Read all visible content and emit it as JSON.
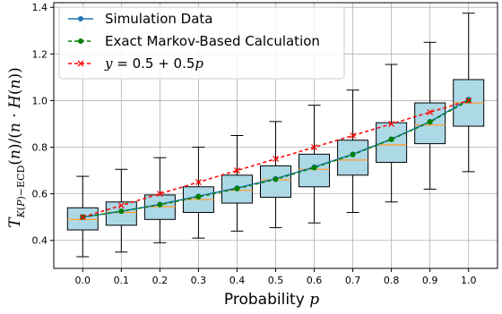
{
  "chart_data": {
    "type": "box",
    "title": "",
    "xlabel": "Probability p",
    "ylabel": "T_{K(P)-ECD}(n)/(n·H(n))",
    "xlim": [
      -0.075,
      1.075
    ],
    "ylim": [
      0.28,
      1.42
    ],
    "x_ticks": [
      "0.0",
      "0.1",
      "0.2",
      "0.3",
      "0.4",
      "0.5",
      "0.6",
      "0.7",
      "0.8",
      "0.9",
      "1.0"
    ],
    "y_ticks": [
      "0.4",
      "0.6",
      "0.8",
      "1.0",
      "1.2",
      "1.4"
    ],
    "grid": true,
    "legend_position": "top-left",
    "boxes": [
      {
        "x": 0.0,
        "whisker_low": 0.33,
        "q1": 0.445,
        "median": 0.49,
        "q3": 0.54,
        "whisker_high": 0.675
      },
      {
        "x": 0.1,
        "whisker_low": 0.35,
        "q1": 0.465,
        "median": 0.52,
        "q3": 0.565,
        "whisker_high": 0.705
      },
      {
        "x": 0.2,
        "whisker_low": 0.39,
        "q1": 0.49,
        "median": 0.545,
        "q3": 0.595,
        "whisker_high": 0.755
      },
      {
        "x": 0.3,
        "whisker_low": 0.41,
        "q1": 0.52,
        "median": 0.575,
        "q3": 0.63,
        "whisker_high": 0.8
      },
      {
        "x": 0.4,
        "whisker_low": 0.44,
        "q1": 0.56,
        "median": 0.615,
        "q3": 0.68,
        "whisker_high": 0.85
      },
      {
        "x": 0.5,
        "whisker_low": 0.455,
        "q1": 0.585,
        "median": 0.66,
        "q3": 0.72,
        "whisker_high": 0.91
      },
      {
        "x": 0.6,
        "whisker_low": 0.475,
        "q1": 0.63,
        "median": 0.705,
        "q3": 0.77,
        "whisker_high": 0.98
      },
      {
        "x": 0.7,
        "whisker_low": 0.52,
        "q1": 0.68,
        "median": 0.745,
        "q3": 0.83,
        "whisker_high": 1.045
      },
      {
        "x": 0.8,
        "whisker_low": 0.565,
        "q1": 0.735,
        "median": 0.81,
        "q3": 0.905,
        "whisker_high": 1.155
      },
      {
        "x": 0.9,
        "whisker_low": 0.62,
        "q1": 0.815,
        "median": 0.895,
        "q3": 0.99,
        "whisker_high": 1.25
      },
      {
        "x": 1.0,
        "whisker_low": 0.695,
        "q1": 0.89,
        "median": 0.99,
        "q3": 1.09,
        "whisker_high": 1.375
      }
    ],
    "series": [
      {
        "name": "Simulation Data",
        "style": "solid-line-circle",
        "color": "#1f77b4",
        "x": [
          0.0,
          0.1,
          0.2,
          0.3,
          0.4,
          0.5,
          0.6,
          0.7,
          0.8,
          0.9,
          1.0
        ],
        "y": [
          0.5,
          0.525,
          0.555,
          0.59,
          0.625,
          0.665,
          0.715,
          0.77,
          0.835,
          0.91,
          1.005
        ]
      },
      {
        "name": "Exact Markov-Based Calculation",
        "style": "dashed-line-circle",
        "color": "#008000",
        "x": [
          0.0,
          0.1,
          0.2,
          0.3,
          0.4,
          0.5,
          0.6,
          0.7,
          0.8,
          0.9,
          1.0
        ],
        "y": [
          0.5,
          0.525,
          0.553,
          0.587,
          0.622,
          0.662,
          0.712,
          0.768,
          0.833,
          0.908,
          1.0
        ]
      },
      {
        "name": "y = 0.5 + 0.5p",
        "style": "dashed-line-x",
        "color": "#ff0000",
        "x": [
          0.0,
          0.1,
          0.2,
          0.3,
          0.4,
          0.5,
          0.6,
          0.7,
          0.8,
          0.9,
          1.0
        ],
        "y": [
          0.5,
          0.55,
          0.6,
          0.65,
          0.7,
          0.75,
          0.8,
          0.85,
          0.9,
          0.95,
          1.0
        ]
      }
    ],
    "colors": {
      "box_fill": "#add8e6",
      "box_edge": "#000000",
      "median": "#ff9f33",
      "grid": "#b0b0b0"
    }
  }
}
